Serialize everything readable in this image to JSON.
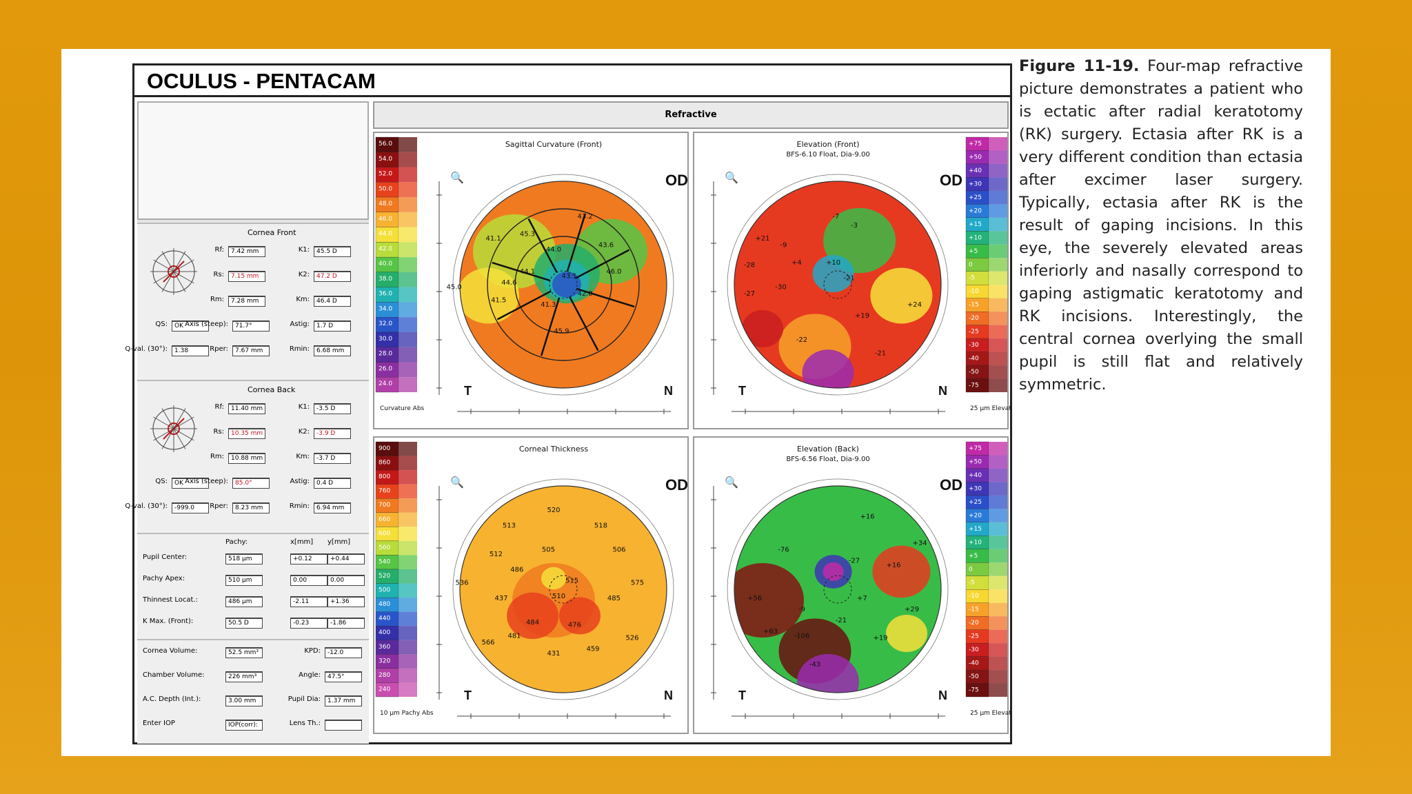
{
  "app": {
    "title": "OCULUS - PENTACAM",
    "tab": "Refractive"
  },
  "cornea_front": {
    "title": "Cornea Front",
    "rows": [
      {
        "l1": "Rf:",
        "v1": "7.42 mm",
        "l2": "K1:",
        "v2": "45.5 D"
      },
      {
        "l1": "Rs:",
        "v1": "7.15 mm",
        "l2": "K2:",
        "v2": "47.2 D"
      },
      {
        "l1": "Rm:",
        "v1": "7.28 mm",
        "l2": "Km:",
        "v2": "46.4 D"
      },
      {
        "l1": "QS:",
        "v1": "OK",
        "l3": "Axis (steep):",
        "v3": "71.7°",
        "l2": "Astig:",
        "v2": "1.7 D"
      },
      {
        "l1": "Q-val. (30°):",
        "v1": "1.38",
        "l3": "Rper:",
        "v3": "7.67 mm",
        "l2": "Rmin:",
        "v2": "6.68 mm"
      }
    ]
  },
  "cornea_back": {
    "title": "Cornea Back",
    "rows": [
      {
        "l1": "Rf:",
        "v1": "11.40 mm",
        "l2": "K1:",
        "v2": "-3.5 D"
      },
      {
        "l1": "Rs:",
        "v1": "10.35 mm",
        "l2": "K2:",
        "v2": "-3.9 D"
      },
      {
        "l1": "Rm:",
        "v1": "10.88 mm",
        "l2": "Km:",
        "v2": "-3.7 D"
      },
      {
        "l1": "QS:",
        "v1": "OK",
        "l3": "Axis (steep):",
        "v3": "85.0°",
        "l2": "Astig:",
        "v2": "0.4 D"
      },
      {
        "l1": "Q-val. (30°):",
        "v1": "-999.0",
        "l3": "Rper:",
        "v3": "8.23 mm",
        "l2": "Rmin:",
        "v2": "6.94 mm"
      }
    ]
  },
  "pachy": {
    "headers": [
      "Pachy:",
      "x[mm]",
      "y[mm]"
    ],
    "rows": [
      {
        "label": "Pupil Center:",
        "v": "518 µm",
        "x": "+0.12",
        "y": "+0.44"
      },
      {
        "label": "Pachy Apex:",
        "v": "510 µm",
        "x": "0.00",
        "y": "0.00"
      },
      {
        "label": "Thinnest Locat.:",
        "v": "486 µm",
        "x": "-2.11",
        "y": "+1.36"
      },
      {
        "label": "K Max. (Front):",
        "v": "50.5 D",
        "x": "-0.23",
        "y": "-1.86"
      }
    ]
  },
  "volume": {
    "rows": [
      {
        "l1": "Cornea Volume:",
        "v1": "52.5 mm³",
        "l2": "KPD:",
        "v2": "-12.0"
      },
      {
        "l1": "Chamber Volume:",
        "v1": "226 mm³",
        "l2": "Angle:",
        "v2": "47.5°"
      },
      {
        "l1": "A.C. Depth (Int.):",
        "v1": "3.00 mm",
        "l2": "Pupil Dia:",
        "v2": "1.37 mm"
      },
      {
        "l1": "Enter IOP",
        "v1": "IOP(corr):",
        "l2": "Lens Th.:",
        "v2": ""
      }
    ]
  },
  "maps": [
    {
      "title": "Sagittal Curvature (Front)",
      "subtitle": "",
      "scale": [
        "56.0",
        "54.0",
        "52.0",
        "50.0",
        "48.0",
        "46.0",
        "44.0",
        "42.0",
        "40.0",
        "38.0",
        "36.0",
        "34.0",
        "32.0",
        "30.0",
        "28.0",
        "26.0",
        "24.0"
      ],
      "scale_footer": "Curvature Abs",
      "colors": [
        "#5a0d0d",
        "#8a1010",
        "#c41818",
        "#e8421c",
        "#f07a20",
        "#f7b230",
        "#f5e03a",
        "#b8dc3a",
        "#57c446",
        "#25ae6a",
        "#1fb2b0",
        "#2b8fd8",
        "#2a55c9",
        "#3330a8",
        "#5a2a9c",
        "#8a2f9f",
        "#b040a8"
      ],
      "labels": [
        "41.1",
        "45.3",
        "43.2",
        "44.6",
        "44.0",
        "41.3",
        "42.0",
        "45.0",
        "41.5",
        "46.0",
        "45.9",
        "44.1",
        "43.1",
        "43.6"
      ],
      "od": "OD",
      "T": "T",
      "N": "N"
    },
    {
      "title": "Elevation (Front)",
      "subtitle": "BFS-6.10 Float, Dia-9.00",
      "scale": [
        "+75",
        "+50",
        "+40",
        "+30",
        "+25",
        "+20",
        "+15",
        "+10",
        "+5",
        "0",
        "-5",
        "-10",
        "-15",
        "-20",
        "-25",
        "-30",
        "-40",
        "-50",
        "-75"
      ],
      "scale_footer": "25 µm Elevation Height",
      "colors": [
        "#c02aa6",
        "#9a2bb0",
        "#6a30b4",
        "#3e36b6",
        "#2a4fc8",
        "#2a7ad8",
        "#22a8c8",
        "#22b27a",
        "#38bc48",
        "#7cca40",
        "#d2de3c",
        "#f7d832",
        "#f6a22a",
        "#ef6d24",
        "#e63a20",
        "#c81e20",
        "#a51818",
        "#851414",
        "#6a1010"
      ],
      "labels": [
        "+21",
        "-22",
        "-30",
        "-28",
        "-27",
        "-21",
        "+19",
        "+24",
        "-21",
        "-9",
        "+4",
        "+10",
        "-3",
        "-7"
      ],
      "od": "OD",
      "T": "T",
      "N": "N"
    },
    {
      "title": "Corneal Thickness",
      "subtitle": "",
      "scale": [
        "900",
        "860",
        "800",
        "760",
        "700",
        "660",
        "600",
        "560",
        "540",
        "520",
        "500",
        "480",
        "440",
        "400",
        "360",
        "320",
        "280",
        "240"
      ],
      "scale_footer": "10 µm Pachy Abs",
      "colors": [
        "#5a0d0d",
        "#8a1010",
        "#c41818",
        "#e8421c",
        "#f07a20",
        "#f7b230",
        "#f5e03a",
        "#b8dc3a",
        "#57c446",
        "#25ae6a",
        "#1fb2b0",
        "#2b8fd8",
        "#2a55c9",
        "#3330a8",
        "#5a2a9c",
        "#8a2f9f",
        "#b040a8",
        "#c84fb0"
      ],
      "labels": [
        "520",
        "513",
        "505",
        "506",
        "486",
        "484",
        "510",
        "515",
        "481",
        "437",
        "485",
        "476",
        "431",
        "459",
        "536",
        "575",
        "566",
        "526",
        "512",
        "518"
      ],
      "od": "OD",
      "T": "T",
      "N": "N"
    },
    {
      "title": "Elevation (Back)",
      "subtitle": "BFS-6.56 Float, Dia-9.00",
      "scale": [
        "+75",
        "+50",
        "+40",
        "+30",
        "+25",
        "+20",
        "+15",
        "+10",
        "+5",
        "0",
        "-5",
        "-10",
        "-15",
        "-20",
        "-25",
        "-30",
        "-40",
        "-50",
        "-75"
      ],
      "scale_footer": "25 µm Elevation Height",
      "colors": [
        "#c02aa6",
        "#9a2bb0",
        "#6a30b4",
        "#3e36b6",
        "#2a4fc8",
        "#2a7ad8",
        "#22a8c8",
        "#22b27a",
        "#38bc48",
        "#7cca40",
        "#d2de3c",
        "#f7d832",
        "#f6a22a",
        "#ef6d24",
        "#e63a20",
        "#c81e20",
        "#a51818",
        "#851414",
        "#6a1010"
      ],
      "labels": [
        "+16",
        "+56",
        "+63",
        "-76",
        "-106",
        "-43",
        "+16",
        "-21",
        "+7",
        "+19",
        "+34",
        "-9",
        "-27",
        "+29"
      ],
      "od": "OD",
      "T": "T",
      "N": "N"
    }
  ],
  "caption": {
    "figure": "Figure 11-19.",
    "text": "Four-map refractive picture demonstrates a patient who is ectatic after radial keratotomy (RK) surgery. Ectasia after RK is a very different condition than ectasia after excimer laser surgery. Typically, ectasia after RK is the result of gaping incisions. In this eye, the severely elevated areas inferiorly and nasally correspond to gaping astigmatic keratotomy and RK incisions. Interestingly, the central cornea overlying the small pupil is still flat and relatively symmetric."
  }
}
